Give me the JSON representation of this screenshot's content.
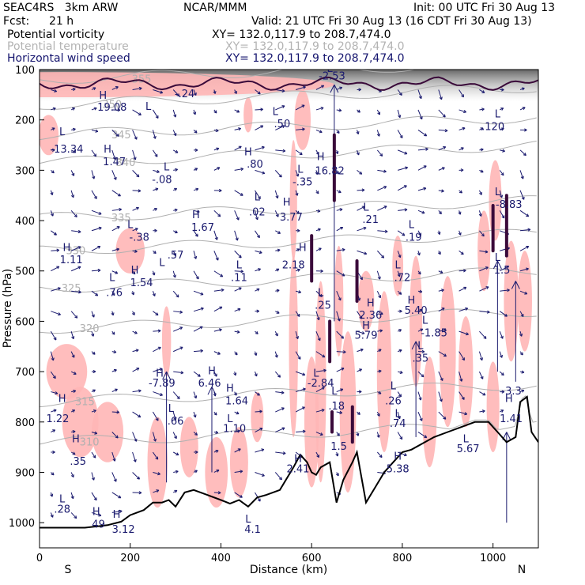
{
  "header": {
    "model": "SEAC4RS   3km ARW",
    "org": "NCAR/MMM",
    "init": "Init: 00 UTC Fri 30 Aug 13",
    "fcst_label": "Fcst:",
    "fcst_value": "21 h",
    "valid": "Valid: 21 UTC Fri 30 Aug 13 (16 CDT Fri 30 Aug 13)",
    "fields": [
      {
        "name": "Potential vorticity",
        "xy": "XY= 132.0,117.9 to 208.7,474.0",
        "color": "#000000"
      },
      {
        "name": "Potential temperature",
        "xy": "XY= 132.0,117.9 to 208.7,474.0",
        "color": "#b3b3b3"
      },
      {
        "name": "Horizontal wind speed",
        "xy": "XY= 132.0,117.9 to 208.7,474.0",
        "color": "#14146e"
      }
    ]
  },
  "chart_data": {
    "type": "cross-section",
    "xlabel": "Distance (km)",
    "ylabel": "Pressure (hPa)",
    "xlim": [
      0,
      1100
    ],
    "ylim": [
      1050,
      100
    ],
    "x_ticks": [
      0,
      200,
      400,
      600,
      800,
      1000
    ],
    "y_ticks": [
      100,
      200,
      300,
      400,
      500,
      600,
      700,
      800,
      900,
      1000
    ],
    "left_end": "S",
    "right_end": "N",
    "colors": {
      "pv_shade": "#ffb6b6",
      "pv_strong": "#3a0a3a",
      "theta": "#b0b0b0",
      "wind": "#1a1a6e",
      "terrain": "#000000"
    },
    "theta_lines": [
      {
        "label": "355",
        "p": 120,
        "lx": 225
      },
      {
        "label": "350",
        "p": 170,
        "lx": 160
      },
      {
        "label": "345",
        "p": 230,
        "lx": 180
      },
      {
        "label": "340",
        "p": 285,
        "lx": 190
      },
      {
        "label": "335",
        "p": 395,
        "lx": 180
      },
      {
        "label": "330",
        "p": 460,
        "lx": 80
      },
      {
        "label": "325",
        "p": 535,
        "lx": 70
      },
      {
        "label": "320",
        "p": 615,
        "lx": 110
      },
      {
        "label": "315",
        "p": 760,
        "lx": 100
      },
      {
        "label": "310",
        "p": 840,
        "lx": 110
      }
    ],
    "terrain_x": [
      0,
      100,
      150,
      180,
      200,
      230,
      250,
      270,
      285,
      300,
      320,
      340,
      370,
      400,
      420,
      440,
      460,
      480,
      500,
      530,
      560,
      575,
      590,
      600,
      610,
      620,
      640,
      655,
      670,
      690,
      700,
      720,
      740,
      760,
      780,
      800,
      820,
      850,
      870,
      900,
      930,
      960,
      990,
      1010,
      1030,
      1050,
      1060,
      1075,
      1085,
      1100
    ],
    "terrain_p": [
      1010,
      1010,
      1005,
      998,
      985,
      975,
      960,
      960,
      955,
      968,
      940,
      935,
      945,
      955,
      962,
      955,
      968,
      950,
      945,
      935,
      890,
      865,
      880,
      900,
      905,
      890,
      880,
      960,
      915,
      880,
      860,
      960,
      930,
      900,
      880,
      860,
      855,
      840,
      830,
      820,
      810,
      800,
      800,
      820,
      840,
      830,
      760,
      750,
      820,
      840
    ],
    "markers": [
      {
        "text": "L",
        "x": 50,
        "p": 230
      },
      {
        "text": "-13.34",
        "x": 60,
        "p": 265
      },
      {
        "text": "H",
        "x": 140,
        "p": 158
      },
      {
        "text": "19.08",
        "x": 160,
        "p": 182
      },
      {
        "text": "L",
        "x": 240,
        "p": 180
      },
      {
        "text": "-.24",
        "x": 320,
        "p": 155
      },
      {
        "text": "H",
        "x": 150,
        "p": 265
      },
      {
        "text": "1.47",
        "x": 165,
        "p": 290
      },
      {
        "text": "L",
        "x": 200,
        "p": 415
      },
      {
        "text": "-.38",
        "x": 220,
        "p": 440
      },
      {
        "text": "H",
        "x": 60,
        "p": 460
      },
      {
        "text": "1.11",
        "x": 70,
        "p": 485
      },
      {
        "text": "L",
        "x": 160,
        "p": 520
      },
      {
        "text": ".76",
        "x": 165,
        "p": 550
      },
      {
        "text": "L",
        "x": 270,
        "p": 490
      },
      {
        "text": ".57",
        "x": 300,
        "p": 475
      },
      {
        "text": "H",
        "x": 210,
        "p": 505
      },
      {
        "text": "1.54",
        "x": 225,
        "p": 530
      },
      {
        "text": "L",
        "x": 280,
        "p": 300
      },
      {
        "text": "-.08",
        "x": 270,
        "p": 325
      },
      {
        "text": "H",
        "x": 345,
        "p": 395
      },
      {
        "text": "1.67",
        "x": 360,
        "p": 420
      },
      {
        "text": "L",
        "x": 440,
        "p": 495
      },
      {
        "text": ".11",
        "x": 440,
        "p": 520
      },
      {
        "text": "L",
        "x": 520,
        "p": 190
      },
      {
        "text": ".50",
        "x": 535,
        "p": 215
      },
      {
        "text": "H",
        "x": 460,
        "p": 270
      },
      {
        "text": ".80",
        "x": 475,
        "p": 295
      },
      {
        "text": "L",
        "x": 480,
        "p": 360
      },
      {
        "text": ".02",
        "x": 480,
        "p": 390
      },
      {
        "text": "L",
        "x": 575,
        "p": 305
      },
      {
        "text": "-.35",
        "x": 580,
        "p": 330
      },
      {
        "text": "H",
        "x": 545,
        "p": 370
      },
      {
        "text": "3.77",
        "x": 555,
        "p": 400
      },
      {
        "text": "H",
        "x": 620,
        "p": 280
      },
      {
        "text": "16.82",
        "x": 640,
        "p": 308
      },
      {
        "text": "L",
        "x": 640,
        "p": 105
      },
      {
        "text": "-2.53",
        "x": 645,
        "p": 120
      },
      {
        "text": "H",
        "x": 580,
        "p": 460
      },
      {
        "text": "2.18",
        "x": 560,
        "p": 495
      },
      {
        "text": "L",
        "x": 620,
        "p": 550
      },
      {
        "text": ".25",
        "x": 625,
        "p": 575
      },
      {
        "text": "L",
        "x": 720,
        "p": 380
      },
      {
        "text": ".21",
        "x": 730,
        "p": 405
      },
      {
        "text": "L",
        "x": 820,
        "p": 415
      },
      {
        "text": ".19",
        "x": 825,
        "p": 440
      },
      {
        "text": "L",
        "x": 790,
        "p": 495
      },
      {
        "text": ".72",
        "x": 800,
        "p": 520
      },
      {
        "text": "H",
        "x": 730,
        "p": 570
      },
      {
        "text": "2.36",
        "x": 730,
        "p": 595
      },
      {
        "text": "H",
        "x": 720,
        "p": 615
      },
      {
        "text": "5.79",
        "x": 720,
        "p": 635
      },
      {
        "text": "H",
        "x": 820,
        "p": 565
      },
      {
        "text": "5.40",
        "x": 830,
        "p": 585
      },
      {
        "text": "L",
        "x": 850,
        "p": 605
      },
      {
        "text": "-1.85",
        "x": 870,
        "p": 630
      },
      {
        "text": "L",
        "x": 840,
        "p": 655
      },
      {
        "text": ".35",
        "x": 840,
        "p": 680
      },
      {
        "text": "L",
        "x": 1010,
        "p": 195
      },
      {
        "text": ".120",
        "x": 1000,
        "p": 220
      },
      {
        "text": "L",
        "x": 1010,
        "p": 350
      },
      {
        "text": "-8.83",
        "x": 1035,
        "p": 375
      },
      {
        "text": "L",
        "x": 1010,
        "p": 480
      },
      {
        "text": "1.5",
        "x": 1020,
        "p": 505
      },
      {
        "text": "H",
        "x": 265,
        "p": 710
      },
      {
        "text": "-7.89",
        "x": 270,
        "p": 730
      },
      {
        "text": "H",
        "x": 380,
        "p": 705
      },
      {
        "text": "6.46",
        "x": 375,
        "p": 730
      },
      {
        "text": "L",
        "x": 290,
        "p": 780
      },
      {
        "text": ".66",
        "x": 300,
        "p": 805
      },
      {
        "text": "H",
        "x": 420,
        "p": 740
      },
      {
        "text": "1.64",
        "x": 435,
        "p": 765
      },
      {
        "text": "L",
        "x": 420,
        "p": 800
      },
      {
        "text": "1.10",
        "x": 430,
        "p": 820
      },
      {
        "text": "H",
        "x": 50,
        "p": 760
      },
      {
        "text": "1.22",
        "x": 40,
        "p": 800
      },
      {
        "text": "H",
        "x": 80,
        "p": 840
      },
      {
        "text": ".35",
        "x": 85,
        "p": 885
      },
      {
        "text": "L",
        "x": 50,
        "p": 960
      },
      {
        "text": ".28",
        "x": 50,
        "p": 980
      },
      {
        "text": "H",
        "x": 125,
        "p": 985
      },
      {
        "text": "49",
        "x": 130,
        "p": 1010
      },
      {
        "text": "H",
        "x": 170,
        "p": 990
      },
      {
        "text": "3.12",
        "x": 185,
        "p": 1020
      },
      {
        "text": "L",
        "x": 610,
        "p": 710
      },
      {
        "text": "-2.84",
        "x": 620,
        "p": 730
      },
      {
        "text": "L",
        "x": 650,
        "p": 745
      },
      {
        "text": ".18",
        "x": 655,
        "p": 775
      },
      {
        "text": "L",
        "x": 780,
        "p": 735
      },
      {
        "text": ".26",
        "x": 780,
        "p": 765
      },
      {
        "text": "L",
        "x": 790,
        "p": 790
      },
      {
        "text": ".74",
        "x": 790,
        "p": 810
      },
      {
        "text": "1.5",
        "x": 660,
        "p": 855
      },
      {
        "text": "H",
        "x": 570,
        "p": 880
      },
      {
        "text": "2.41",
        "x": 570,
        "p": 900
      },
      {
        "text": "H",
        "x": 790,
        "p": 875
      },
      {
        "text": "5.38",
        "x": 790,
        "p": 900
      },
      {
        "text": "L",
        "x": 940,
        "p": 840
      },
      {
        "text": "5.67",
        "x": 945,
        "p": 860
      },
      {
        "text": "H",
        "x": 1035,
        "p": 760
      },
      {
        "text": "3.3",
        "x": 1045,
        "p": 745
      },
      {
        "text": "1.41",
        "x": 1040,
        "p": 800
      },
      {
        "text": "L",
        "x": 460,
        "p": 1000
      },
      {
        "text": "4.1",
        "x": 470,
        "p": 1020
      }
    ]
  }
}
